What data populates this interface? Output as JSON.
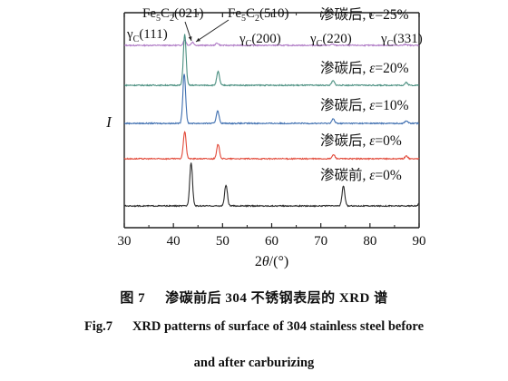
{
  "chart_data": {
    "type": "line",
    "y_axis_label": "I",
    "x_axis_label": "2θ/(°)",
    "x_axis_label_parts": {
      "pre": "2",
      "var": "θ",
      "post": "/(°)"
    },
    "xlim": [
      30,
      90
    ],
    "x_ticks": [
      "30",
      "40",
      "50",
      "60",
      "70",
      "80",
      "90"
    ],
    "y_ticks_shown": false,
    "grid": false,
    "series": [
      {
        "name": "渗碳后, ε=25%",
        "name_parts": {
          "pre": "渗碳后, ",
          "var": "ε",
          "post": "=25%"
        },
        "color": "#b07cc6",
        "peaks": [
          {
            "x": 42.3,
            "h": 0.6
          },
          {
            "x": 43.9,
            "h": 0.35
          },
          {
            "x": 48.9,
            "h": 0.25
          },
          {
            "x": 72.4,
            "h": 0.12
          },
          {
            "x": 87.3,
            "h": 0.12
          }
        ]
      },
      {
        "name": "渗碳后, ε=20%",
        "name_parts": {
          "pre": "渗碳后, ",
          "var": "ε",
          "post": "=20%"
        },
        "color": "#4a8f80",
        "peaks": [
          {
            "x": 42.3,
            "h": 5.6
          },
          {
            "x": 49.1,
            "h": 1.5
          },
          {
            "x": 72.5,
            "h": 0.5
          },
          {
            "x": 87.4,
            "h": 0.3
          }
        ]
      },
      {
        "name": "渗碳后, ε=10%",
        "name_parts": {
          "pre": "渗碳后, ",
          "var": "ε",
          "post": "=10%"
        },
        "color": "#3f6fb0",
        "peaks": [
          {
            "x": 42.2,
            "h": 5.5
          },
          {
            "x": 49.0,
            "h": 1.4
          },
          {
            "x": 72.5,
            "h": 0.5
          },
          {
            "x": 87.4,
            "h": 0.3
          }
        ]
      },
      {
        "name": "渗碳后, ε=0%",
        "name_parts": {
          "pre": "渗碳后, ",
          "var": "ε",
          "post": "=0%"
        },
        "color": "#e24a3a",
        "peaks": [
          {
            "x": 42.3,
            "h": 3.0
          },
          {
            "x": 49.1,
            "h": 1.6
          },
          {
            "x": 72.6,
            "h": 0.45
          },
          {
            "x": 87.4,
            "h": 0.3
          }
        ]
      },
      {
        "name": "渗碳前, ε=0%",
        "name_parts": {
          "pre": "渗碳前, ",
          "var": "ε",
          "post": "=0%"
        },
        "color": "#2b2b2b",
        "peaks": [
          {
            "x": 43.6,
            "h": 4.8
          },
          {
            "x": 50.7,
            "h": 2.3
          },
          {
            "x": 74.6,
            "h": 2.2
          },
          {
            "x": 90.2,
            "h": 0.4
          }
        ]
      }
    ],
    "annotations": [
      {
        "base": "Fe",
        "s1": "5",
        "mid": "C",
        "s2": "2",
        "post": "(021)"
      },
      {
        "base": "Fe",
        "s1": "5",
        "mid": "C",
        "s2": "2",
        "post": "(510)"
      },
      {
        "base": "γ",
        "s1": "C",
        "post": "(111)"
      },
      {
        "base": "γ",
        "s1": "C",
        "post": "(200)"
      },
      {
        "base": "γ",
        "s1": "C",
        "post": "(220)"
      },
      {
        "base": "γ",
        "s1": "C",
        "post": "(331)"
      }
    ]
  },
  "caption": {
    "zh_label": "图 7",
    "zh_text": "渗碳前后 304 不锈钢表层的 XRD 谱",
    "en_label": "Fig.7",
    "en_line1": "XRD patterns of surface of 304 stainless steel before",
    "en_line2": "and after carburizing"
  }
}
